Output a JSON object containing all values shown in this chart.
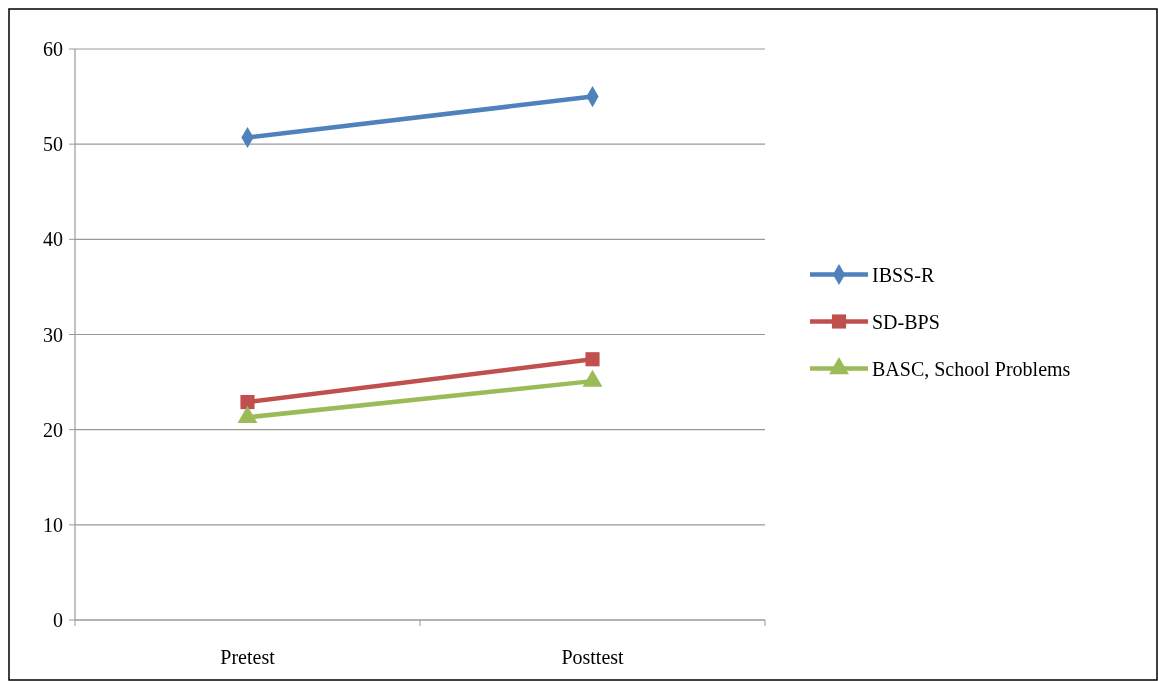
{
  "chart_data": {
    "type": "line",
    "categories": [
      "Pretest",
      "Posttest"
    ],
    "series": [
      {
        "name": "IBSS-R",
        "color": "#4f81bd",
        "marker": "diamond",
        "values": [
          50.7,
          55.0
        ]
      },
      {
        "name": "SD-BPS",
        "color": "#c0504d",
        "marker": "square",
        "values": [
          22.9,
          27.4
        ]
      },
      {
        "name": "BASC, School Problems",
        "color": "#9bbb59",
        "marker": "triangle",
        "values": [
          21.3,
          25.1
        ]
      }
    ],
    "ylim": [
      0,
      60
    ],
    "yticks": [
      0,
      10,
      20,
      30,
      40,
      50,
      60
    ],
    "grid": "y",
    "legend": "right"
  }
}
